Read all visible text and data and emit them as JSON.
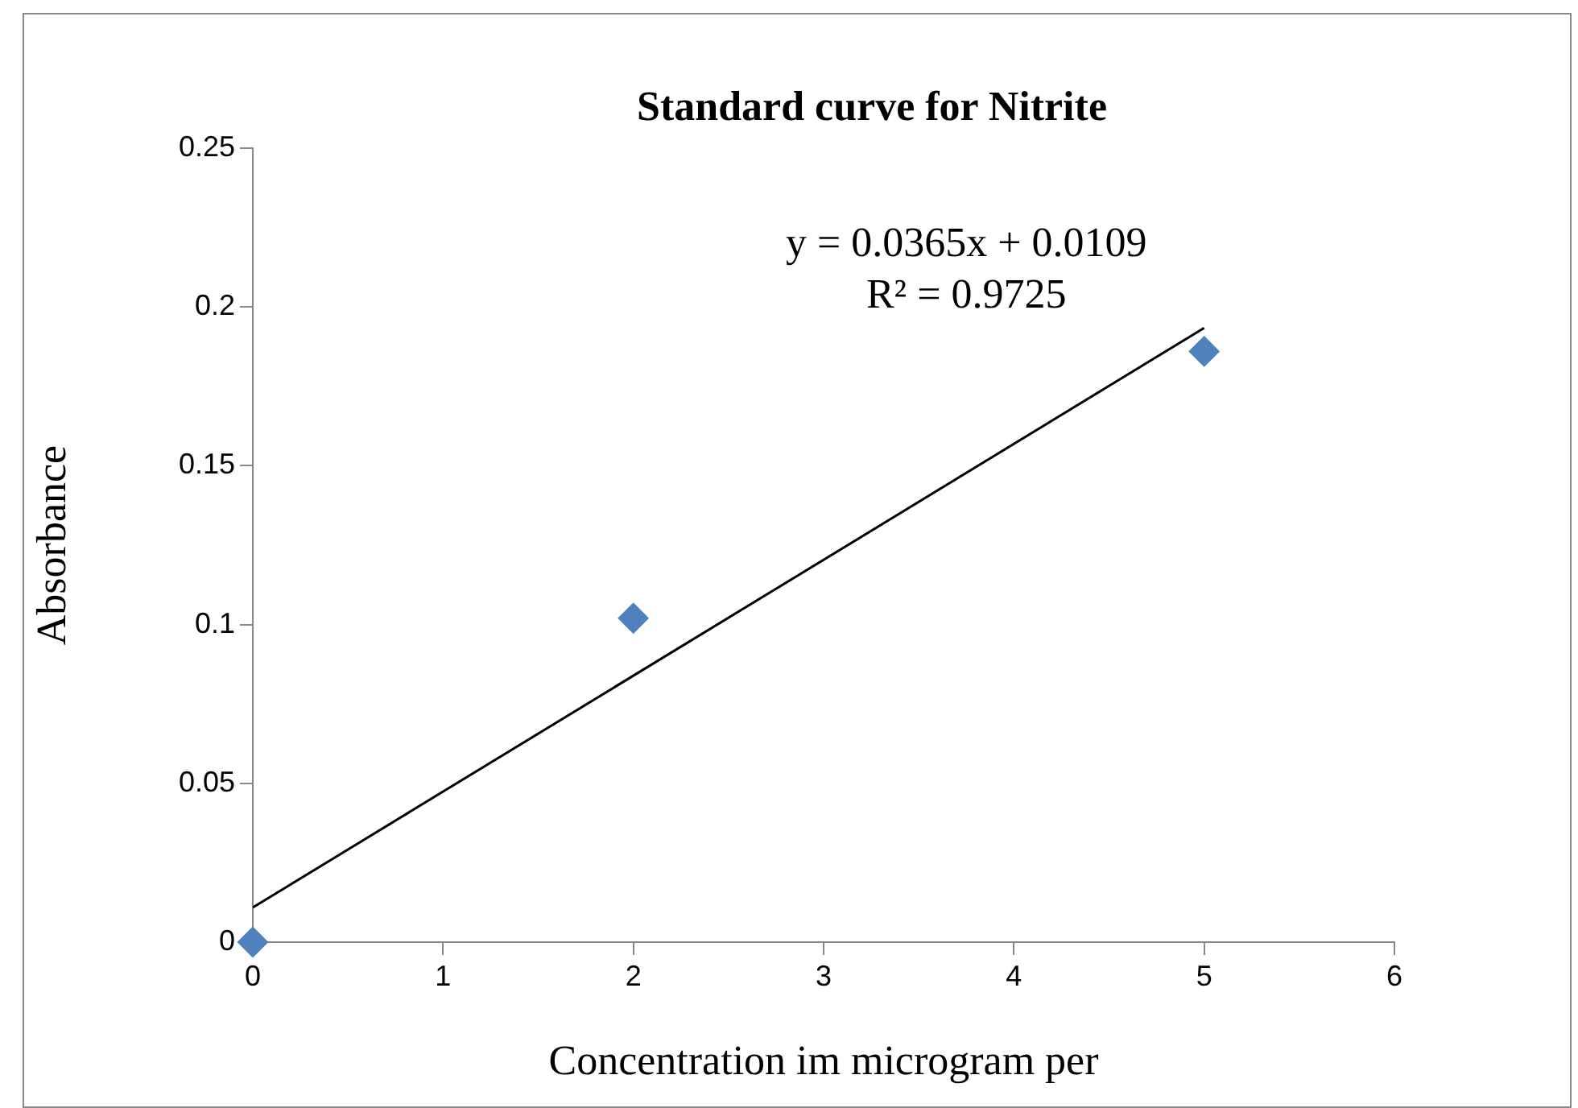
{
  "chart_data": {
    "type": "scatter",
    "title": "Standard curve for Nitrite",
    "xlabel": "Concentration im microgram per",
    "ylabel": "Absorbance",
    "annotations": [
      "y = 0.0365x + 0.0109",
      "R² = 0.9725"
    ],
    "series": [
      {
        "type": "scatter",
        "x": [
          0,
          2,
          5
        ],
        "values": [
          0,
          0.102,
          0.186
        ],
        "color": "#4f81bd",
        "marker": "diamond"
      },
      {
        "type": "line",
        "x": [
          0,
          5
        ],
        "values": [
          0.0109,
          0.1934
        ],
        "color": "#000000"
      }
    ],
    "xlim": [
      0,
      6
    ],
    "xticks": [
      0,
      1,
      2,
      3,
      4,
      5,
      6
    ],
    "ylim": [
      0,
      0.25
    ],
    "yticks": [
      0,
      0.05,
      0.1,
      0.15,
      0.2,
      0.25
    ],
    "grid": false
  }
}
